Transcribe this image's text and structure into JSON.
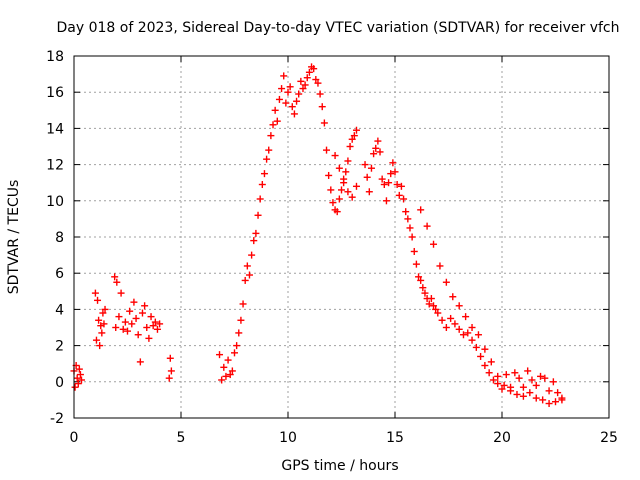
{
  "chart_data": {
    "type": "scatter",
    "title": "Day 018 of 2023, Sidereal Day-to-day VTEC variation (SDTVAR) for receiver vfch",
    "xlabel": "GPS time / hours",
    "ylabel": "SDTVAR / TECUs",
    "xlim": [
      0,
      25
    ],
    "ylim": [
      -2,
      18
    ],
    "x_ticks": [
      0,
      5,
      10,
      15,
      20,
      25
    ],
    "x_tick_labels": [
      "0",
      "5",
      "10",
      "15",
      "20",
      "25"
    ],
    "y_ticks": [
      -2,
      0,
      2,
      4,
      6,
      8,
      10,
      12,
      14,
      16,
      18
    ],
    "y_tick_labels": [
      "-2",
      "0",
      "2",
      "4",
      "6",
      "8",
      "10",
      "12",
      "14",
      "16",
      "18"
    ],
    "grid": true,
    "marker": "plus",
    "color": "#ff0000",
    "series": [
      {
        "name": "SDTVAR",
        "x": [
          0.0,
          0.05,
          0.1,
          0.15,
          0.2,
          0.25,
          0.3,
          0.35,
          1.0,
          1.05,
          1.1,
          1.15,
          1.2,
          1.25,
          1.3,
          1.35,
          1.4,
          1.45,
          1.9,
          1.95,
          2.0,
          2.1,
          2.2,
          2.3,
          2.4,
          2.5,
          2.6,
          2.7,
          2.8,
          2.9,
          3.0,
          3.1,
          3.2,
          3.3,
          3.4,
          3.5,
          3.6,
          3.7,
          3.8,
          3.9,
          4.0,
          4.45,
          4.5,
          4.55,
          6.8,
          6.9,
          7.0,
          7.1,
          7.2,
          7.3,
          7.4,
          7.5,
          7.6,
          7.7,
          7.8,
          7.9,
          8.0,
          8.1,
          8.2,
          8.3,
          8.4,
          8.5,
          8.6,
          8.7,
          8.8,
          8.9,
          9.0,
          9.1,
          9.2,
          9.3,
          9.4,
          9.5,
          9.6,
          9.7,
          9.8,
          9.9,
          10.0,
          10.1,
          10.2,
          10.3,
          10.4,
          10.5,
          10.6,
          10.7,
          10.8,
          10.9,
          11.0,
          11.1,
          11.2,
          11.3,
          11.4,
          11.5,
          11.6,
          11.7,
          11.8,
          11.9,
          12.0,
          12.1,
          12.2,
          12.3,
          12.4,
          12.5,
          12.6,
          12.7,
          12.8,
          12.9,
          13.0,
          13.1,
          13.2,
          12.2,
          12.4,
          12.6,
          12.8,
          13.0,
          13.2,
          13.6,
          13.7,
          13.8,
          13.9,
          14.0,
          14.1,
          14.2,
          14.3,
          14.4,
          14.5,
          14.6,
          14.7,
          14.8,
          14.9,
          15.0,
          15.1,
          15.2,
          15.3,
          15.4,
          15.5,
          15.6,
          15.7,
          15.8,
          15.9,
          16.0,
          16.1,
          16.2,
          16.3,
          16.4,
          16.5,
          16.6,
          16.7,
          16.8,
          16.9,
          17.0,
          17.2,
          17.4,
          17.6,
          17.8,
          18.0,
          18.2,
          18.4,
          18.6,
          18.8,
          19.0,
          19.2,
          19.4,
          19.6,
          19.8,
          20.0,
          20.2,
          20.4,
          20.6,
          20.8,
          21.0,
          21.2,
          21.4,
          21.6,
          21.8,
          22.0,
          22.2,
          22.4,
          22.6,
          22.8,
          16.2,
          16.5,
          16.8,
          17.1,
          17.4,
          17.7,
          18.0,
          18.3,
          18.6,
          18.9,
          19.2,
          19.5,
          19.8,
          20.1,
          20.4,
          20.7,
          21.0,
          21.3,
          21.6,
          21.9,
          22.2,
          22.5,
          22.8
        ],
        "y": [
          0.6,
          -0.3,
          0.9,
          0.2,
          -0.1,
          0.7,
          0.4,
          0.1,
          4.9,
          2.3,
          4.5,
          3.4,
          2.0,
          3.1,
          2.7,
          3.8,
          3.2,
          4.0,
          5.8,
          3.0,
          5.5,
          3.6,
          4.9,
          2.9,
          3.3,
          2.8,
          3.9,
          3.2,
          4.4,
          3.5,
          2.6,
          1.1,
          3.8,
          4.2,
          3.0,
          2.4,
          3.6,
          3.1,
          3.3,
          2.9,
          3.2,
          0.2,
          1.3,
          0.6,
          1.5,
          0.1,
          0.8,
          0.3,
          1.2,
          0.4,
          0.6,
          1.6,
          2.0,
          2.7,
          3.4,
          4.3,
          5.6,
          6.4,
          5.9,
          7.0,
          7.8,
          8.2,
          9.2,
          10.1,
          10.9,
          11.5,
          12.3,
          12.8,
          13.6,
          14.2,
          15.0,
          14.4,
          15.6,
          16.2,
          16.9,
          15.4,
          16.0,
          16.3,
          15.2,
          14.8,
          15.5,
          15.9,
          16.6,
          16.2,
          16.4,
          16.8,
          17.1,
          17.4,
          17.3,
          16.7,
          16.5,
          15.9,
          15.2,
          14.3,
          12.8,
          11.4,
          10.6,
          9.9,
          9.5,
          9.4,
          10.1,
          10.6,
          11.2,
          11.6,
          12.2,
          13.0,
          13.4,
          13.6,
          13.9,
          12.5,
          11.8,
          11.0,
          10.5,
          10.2,
          10.8,
          12.0,
          11.3,
          10.5,
          11.8,
          12.6,
          12.9,
          13.3,
          12.7,
          11.2,
          10.9,
          10.0,
          11.0,
          11.5,
          12.1,
          11.6,
          10.9,
          10.3,
          10.8,
          10.1,
          9.4,
          9.0,
          8.5,
          8.0,
          7.2,
          6.5,
          5.8,
          5.6,
          5.2,
          4.9,
          4.6,
          4.3,
          4.6,
          4.2,
          4.0,
          3.8,
          3.4,
          3.0,
          3.5,
          3.2,
          2.9,
          2.6,
          2.7,
          2.3,
          1.9,
          1.4,
          0.9,
          0.5,
          0.1,
          -0.1,
          -0.4,
          0.4,
          -0.3,
          0.5,
          0.2,
          -0.3,
          0.6,
          0.1,
          -0.2,
          0.3,
          0.2,
          -0.5,
          0.0,
          -0.6,
          -0.9,
          9.5,
          8.6,
          7.6,
          6.4,
          5.5,
          4.7,
          4.2,
          3.6,
          3.0,
          2.6,
          1.8,
          1.1,
          0.3,
          -0.2,
          -0.5,
          -0.7,
          -0.8,
          -0.6,
          -0.9,
          -1.0,
          -1.2,
          -1.1,
          -1.0
        ]
      }
    ]
  }
}
